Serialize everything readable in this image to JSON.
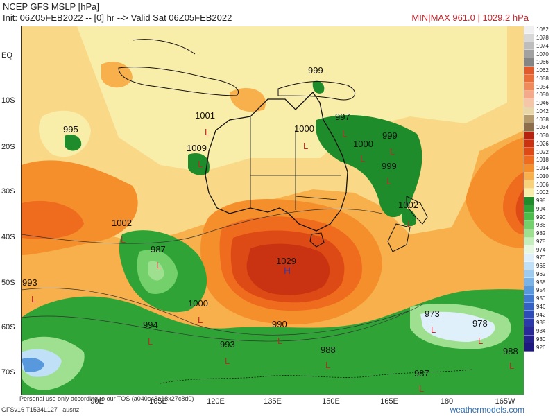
{
  "header": {
    "title": "NCEP GFS MSLP [hPa]",
    "subtitle": "Init: 06Z05FEB2022 -- [0] hr --> Valid Sat 06Z05FEB2022",
    "minmax": "MIN|MAX 961.0 | 1029.2 hPa"
  },
  "lat_labels": [
    "EQ",
    "10S",
    "20S",
    "30S",
    "40S",
    "50S",
    "60S",
    "70S"
  ],
  "lon_labels": [
    "90E",
    "105E",
    "120E",
    "135E",
    "150E",
    "165E",
    "180",
    "165W"
  ],
  "pressure_labels": [
    "999",
    "1001",
    "995",
    "1009",
    "997",
    "1000",
    "1000",
    "999",
    "999",
    "1002",
    "1002",
    "987",
    "1029",
    "993",
    "1000",
    "994",
    "990",
    "993",
    "988",
    "973",
    "978",
    "988",
    "987"
  ],
  "centers": {
    "high": "H",
    "low": "L"
  },
  "colorbar": {
    "levels": [
      "1082",
      "1078",
      "1074",
      "1070",
      "1066",
      "1062",
      "1058",
      "1054",
      "1050",
      "1046",
      "1042",
      "1038",
      "1034",
      "1030",
      "1026",
      "1022",
      "1018",
      "1014",
      "1010",
      "1006",
      "1002",
      "998",
      "994",
      "990",
      "986",
      "982",
      "978",
      "974",
      "970",
      "966",
      "962",
      "958",
      "954",
      "950",
      "946",
      "942",
      "938",
      "934",
      "930",
      "926"
    ],
    "colors": [
      "#f0f0f0",
      "#d8d8d8",
      "#bdbdbd",
      "#a1a1a1",
      "#858585",
      "#e05a2c",
      "#e86f3a",
      "#ef8a5a",
      "#f3a98a",
      "#f5c6a8",
      "#e9d7a8",
      "#b59a6e",
      "#8d6e4a",
      "#b5230f",
      "#c93312",
      "#de4a15",
      "#ef6b1e",
      "#f58f2c",
      "#f7b04b",
      "#f7d27a",
      "#f9edaa",
      "#1e8c2a",
      "#2fa336",
      "#4cbd4a",
      "#73d06a",
      "#9ee08f",
      "#c4eebb",
      "#e7f8e2",
      "#dff0fb",
      "#bfe0f6",
      "#9ccbef",
      "#7ab4e6",
      "#5898dc",
      "#3f7ad0",
      "#3361c4",
      "#2d4cb6",
      "#2b3aa8",
      "#29299a",
      "#24208c",
      "#1c1880"
    ]
  },
  "footer": {
    "left": "GFSv16 T1534L127 | ausnz",
    "disclaimer": "Personal use only according to our TOS (a040c48a18x27c8d0)",
    "brand": "weathermodels.com"
  }
}
